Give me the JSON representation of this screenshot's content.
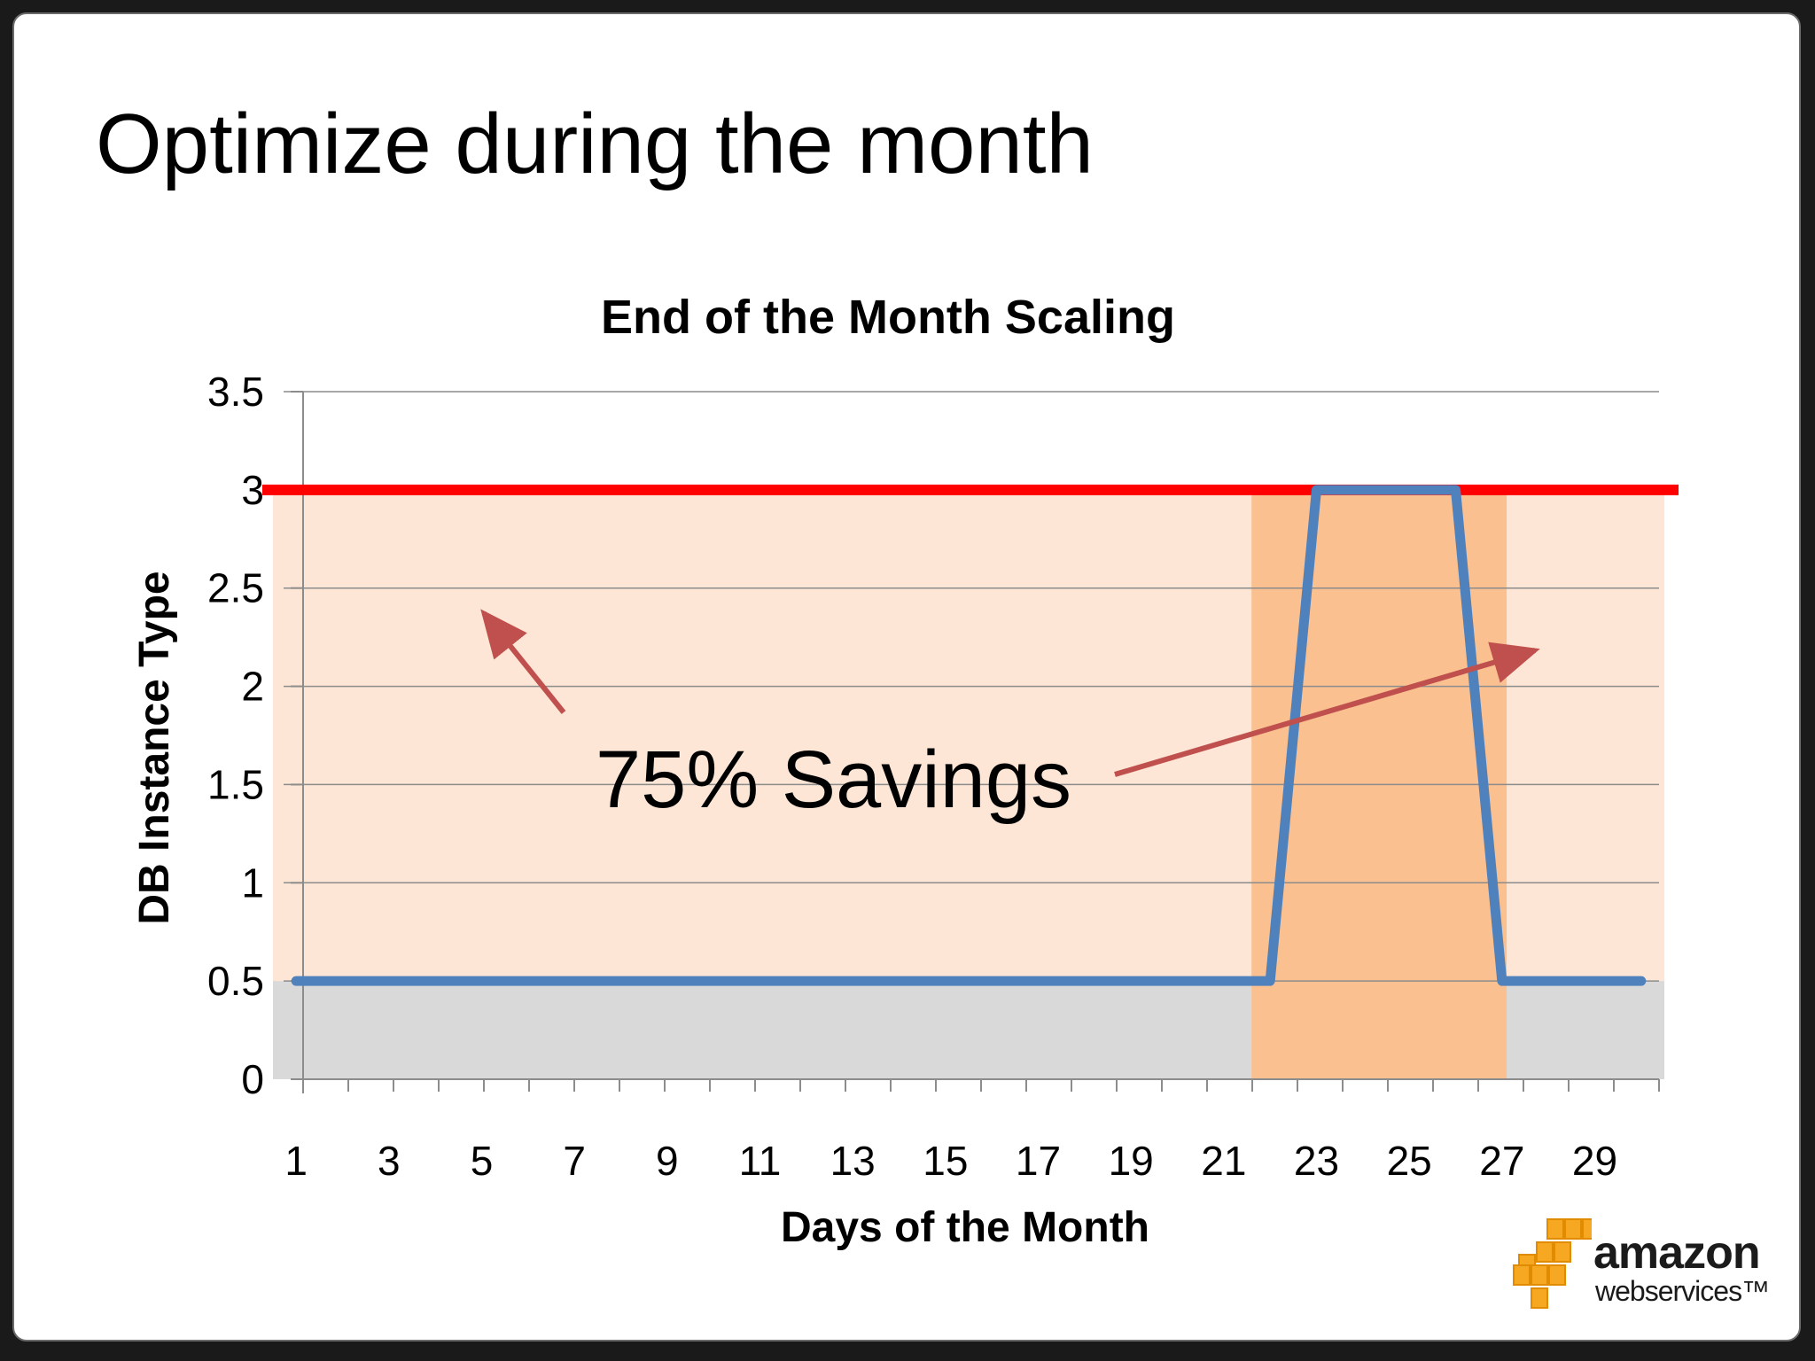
{
  "slide": {
    "title": "Optimize during the month"
  },
  "annotation": {
    "text": "75% Savings",
    "arrow_color": "#c0504d"
  },
  "logo": {
    "line1": "amazon",
    "line2": "webservices™"
  },
  "colors": {
    "series_line": "#4f81bd",
    "max_capacity_line": "#ff0000",
    "savings_band": "#fde6d6",
    "baseline_band": "#d9d9d9",
    "peak_band": "#fac090",
    "gridline": "#8c8c8c"
  },
  "chart_data": {
    "type": "line",
    "title": "End of the Month Scaling",
    "xlabel": "Days of the Month",
    "ylabel": "DB Instance Type",
    "ylim": [
      0,
      3.5
    ],
    "yticks": [
      0,
      0.5,
      1,
      1.5,
      2,
      2.5,
      3,
      3.5
    ],
    "ytick_labels": [
      "0",
      "0.5",
      "1",
      "1.5",
      "2",
      "2.5",
      "3",
      "3.5"
    ],
    "xlim": [
      1,
      30
    ],
    "xtick_labels": [
      "1",
      "3",
      "5",
      "7",
      "9",
      "11",
      "13",
      "15",
      "17",
      "19",
      "21",
      "23",
      "25",
      "27",
      "29"
    ],
    "grid": true,
    "x": [
      1,
      2,
      3,
      4,
      5,
      6,
      7,
      8,
      9,
      10,
      11,
      12,
      13,
      14,
      15,
      16,
      17,
      18,
      19,
      20,
      21,
      22,
      23,
      24,
      25,
      26,
      27,
      28,
      29,
      30
    ],
    "series": [
      {
        "values": [
          0.5,
          0.5,
          0.5,
          0.5,
          0.5,
          0.5,
          0.5,
          0.5,
          0.5,
          0.5,
          0.5,
          0.5,
          0.5,
          0.5,
          0.5,
          0.5,
          0.5,
          0.5,
          0.5,
          0.5,
          0.5,
          0.5,
          3,
          3,
          3,
          3,
          0.5,
          0.5,
          0.5,
          0.5
        ]
      }
    ],
    "reference_line": {
      "y": 3
    },
    "shaded_regions": [
      {
        "x": [
          0.5,
          30.5
        ],
        "y": [
          0.5,
          3
        ]
      },
      {
        "x": [
          0.5,
          30.5
        ],
        "y": [
          0,
          0.5
        ]
      },
      {
        "x": [
          21.6,
          27.1
        ],
        "y": [
          0,
          3
        ]
      }
    ]
  }
}
